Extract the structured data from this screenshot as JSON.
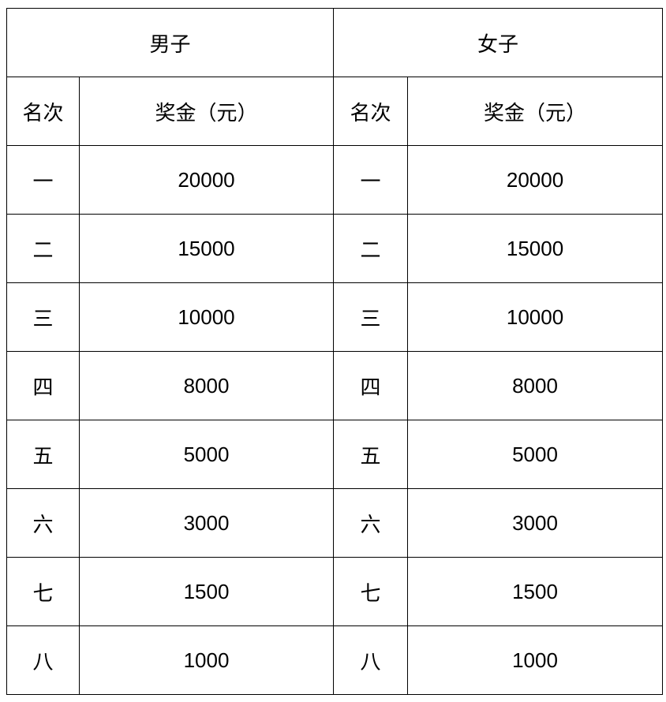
{
  "table": {
    "groups": [
      "男子",
      "女子"
    ],
    "subheaders": [
      "名次",
      "奖金（元）",
      "名次",
      "奖金（元）"
    ],
    "rows": [
      [
        "一",
        "20000",
        "一",
        "20000"
      ],
      [
        "二",
        "15000",
        "二",
        "15000"
      ],
      [
        "三",
        "10000",
        "三",
        "10000"
      ],
      [
        "四",
        "8000",
        "四",
        "8000"
      ],
      [
        "五",
        "5000",
        "五",
        "5000"
      ],
      [
        "六",
        "3000",
        "六",
        "3000"
      ],
      [
        "七",
        "1500",
        "七",
        "1500"
      ],
      [
        "八",
        "1000",
        "八",
        "1000"
      ]
    ]
  }
}
